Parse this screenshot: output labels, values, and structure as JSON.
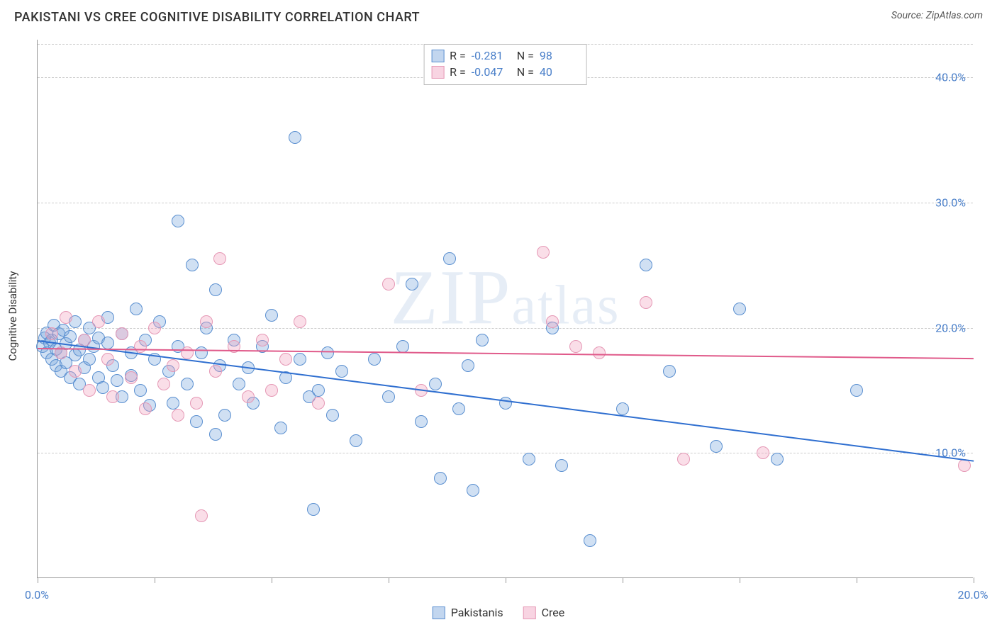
{
  "header": {
    "title": "PAKISTANI VS CREE COGNITIVE DISABILITY CORRELATION CHART",
    "source": "Source: ZipAtlas.com"
  },
  "watermark": {
    "prefix": "ZIP",
    "suffix": "atlas"
  },
  "chart": {
    "type": "scatter",
    "ylabel": "Cognitive Disability",
    "background_color": "#ffffff",
    "grid_color": "#cccccc",
    "grid_dash": true,
    "xlim": [
      0,
      20
    ],
    "ylim": [
      0,
      43
    ],
    "xticks": [
      0,
      2.5,
      5,
      7.5,
      10,
      12.5,
      15,
      17.5,
      20
    ],
    "xtick_labels": {
      "0": "0.0%",
      "20": "20.0%"
    },
    "yticks": [
      10,
      20,
      30,
      40
    ],
    "ytick_labels": {
      "10": "10.0%",
      "20": "20.0%",
      "30": "30.0%",
      "40": "40.0%"
    },
    "label_color": "#4a7fc9",
    "label_fontsize": 16,
    "point_radius": 9,
    "point_border_width": 1.5,
    "series": [
      {
        "name": "Pakistanis",
        "fill_color": "rgba(120,165,220,0.35)",
        "stroke_color": "#5a8fd0",
        "trend": {
          "color": "#2f6fd0",
          "x1": 0,
          "y1": 19.0,
          "x2": 20,
          "y2": 9.4
        },
        "stats": {
          "R": "-0.281",
          "N": "98"
        },
        "points": [
          [
            0.1,
            18.5
          ],
          [
            0.15,
            19.2
          ],
          [
            0.2,
            18.0
          ],
          [
            0.2,
            19.6
          ],
          [
            0.25,
            18.8
          ],
          [
            0.3,
            17.5
          ],
          [
            0.3,
            19.0
          ],
          [
            0.35,
            20.2
          ],
          [
            0.4,
            18.3
          ],
          [
            0.4,
            17.0
          ],
          [
            0.45,
            19.5
          ],
          [
            0.5,
            18.0
          ],
          [
            0.5,
            16.5
          ],
          [
            0.55,
            19.8
          ],
          [
            0.6,
            17.2
          ],
          [
            0.6,
            18.7
          ],
          [
            0.7,
            19.3
          ],
          [
            0.7,
            16.0
          ],
          [
            0.8,
            20.5
          ],
          [
            0.8,
            17.8
          ],
          [
            0.9,
            18.2
          ],
          [
            0.9,
            15.5
          ],
          [
            1.0,
            19.0
          ],
          [
            1.0,
            16.8
          ],
          [
            1.1,
            17.5
          ],
          [
            1.1,
            20.0
          ],
          [
            1.2,
            18.5
          ],
          [
            1.3,
            16.0
          ],
          [
            1.3,
            19.2
          ],
          [
            1.4,
            15.2
          ],
          [
            1.5,
            18.8
          ],
          [
            1.5,
            20.8
          ],
          [
            1.6,
            17.0
          ],
          [
            1.7,
            15.8
          ],
          [
            1.8,
            19.5
          ],
          [
            1.8,
            14.5
          ],
          [
            2.0,
            18.0
          ],
          [
            2.0,
            16.2
          ],
          [
            2.1,
            21.5
          ],
          [
            2.2,
            15.0
          ],
          [
            2.3,
            19.0
          ],
          [
            2.4,
            13.8
          ],
          [
            2.5,
            17.5
          ],
          [
            2.6,
            20.5
          ],
          [
            2.8,
            16.5
          ],
          [
            2.9,
            14.0
          ],
          [
            3.0,
            18.5
          ],
          [
            3.0,
            28.5
          ],
          [
            3.2,
            15.5
          ],
          [
            3.3,
            25.0
          ],
          [
            3.4,
            12.5
          ],
          [
            3.5,
            18.0
          ],
          [
            3.6,
            20.0
          ],
          [
            3.8,
            23.0
          ],
          [
            3.8,
            11.5
          ],
          [
            3.9,
            17.0
          ],
          [
            4.0,
            13.0
          ],
          [
            4.2,
            19.0
          ],
          [
            4.3,
            15.5
          ],
          [
            4.5,
            16.8
          ],
          [
            4.6,
            14.0
          ],
          [
            4.8,
            18.5
          ],
          [
            5.0,
            21.0
          ],
          [
            5.2,
            12.0
          ],
          [
            5.3,
            16.0
          ],
          [
            5.5,
            35.2
          ],
          [
            5.6,
            17.5
          ],
          [
            5.8,
            14.5
          ],
          [
            5.9,
            5.5
          ],
          [
            6.0,
            15.0
          ],
          [
            6.2,
            18.0
          ],
          [
            6.3,
            13.0
          ],
          [
            6.5,
            16.5
          ],
          [
            6.8,
            11.0
          ],
          [
            7.2,
            17.5
          ],
          [
            7.5,
            14.5
          ],
          [
            7.8,
            18.5
          ],
          [
            8.0,
            23.5
          ],
          [
            8.2,
            12.5
          ],
          [
            8.5,
            15.5
          ],
          [
            8.6,
            8.0
          ],
          [
            8.8,
            25.5
          ],
          [
            9.0,
            13.5
          ],
          [
            9.2,
            17.0
          ],
          [
            9.3,
            7.0
          ],
          [
            9.5,
            19.0
          ],
          [
            10.0,
            14.0
          ],
          [
            10.5,
            9.5
          ],
          [
            11.0,
            20.0
          ],
          [
            11.2,
            9.0
          ],
          [
            11.8,
            3.0
          ],
          [
            12.5,
            13.5
          ],
          [
            13.0,
            25.0
          ],
          [
            13.5,
            16.5
          ],
          [
            14.5,
            10.5
          ],
          [
            15.0,
            21.5
          ],
          [
            15.8,
            9.5
          ],
          [
            17.5,
            15.0
          ]
        ]
      },
      {
        "name": "Cree",
        "fill_color": "rgba(240,160,190,0.35)",
        "stroke_color": "#e598b5",
        "trend": {
          "color": "#e05a8a",
          "x1": 0,
          "y1": 18.4,
          "x2": 20,
          "y2": 17.6
        },
        "stats": {
          "R": "-0.047",
          "N": "40"
        },
        "points": [
          [
            0.3,
            19.5
          ],
          [
            0.5,
            18.0
          ],
          [
            0.6,
            20.8
          ],
          [
            0.8,
            16.5
          ],
          [
            1.0,
            19.0
          ],
          [
            1.1,
            15.0
          ],
          [
            1.3,
            20.5
          ],
          [
            1.5,
            17.5
          ],
          [
            1.6,
            14.5
          ],
          [
            1.8,
            19.5
          ],
          [
            2.0,
            16.0
          ],
          [
            2.2,
            18.5
          ],
          [
            2.3,
            13.5
          ],
          [
            2.5,
            20.0
          ],
          [
            2.7,
            15.5
          ],
          [
            2.9,
            17.0
          ],
          [
            3.0,
            13.0
          ],
          [
            3.2,
            18.0
          ],
          [
            3.4,
            14.0
          ],
          [
            3.5,
            5.0
          ],
          [
            3.6,
            20.5
          ],
          [
            3.8,
            16.5
          ],
          [
            3.9,
            25.5
          ],
          [
            4.2,
            18.5
          ],
          [
            4.5,
            14.5
          ],
          [
            4.8,
            19.0
          ],
          [
            5.0,
            15.0
          ],
          [
            5.3,
            17.5
          ],
          [
            5.6,
            20.5
          ],
          [
            6.0,
            14.0
          ],
          [
            7.5,
            23.5
          ],
          [
            8.2,
            15.0
          ],
          [
            10.8,
            26.0
          ],
          [
            11.0,
            20.5
          ],
          [
            12.0,
            18.0
          ],
          [
            13.0,
            22.0
          ],
          [
            13.8,
            9.5
          ],
          [
            15.5,
            10.0
          ],
          [
            19.8,
            9.0
          ],
          [
            11.5,
            18.5
          ]
        ]
      }
    ],
    "legend": {
      "items": [
        {
          "label": "Pakistanis",
          "fill": "rgba(120,165,220,0.45)",
          "stroke": "#5a8fd0"
        },
        {
          "label": "Cree",
          "fill": "rgba(240,160,190,0.45)",
          "stroke": "#e598b5"
        }
      ]
    }
  }
}
